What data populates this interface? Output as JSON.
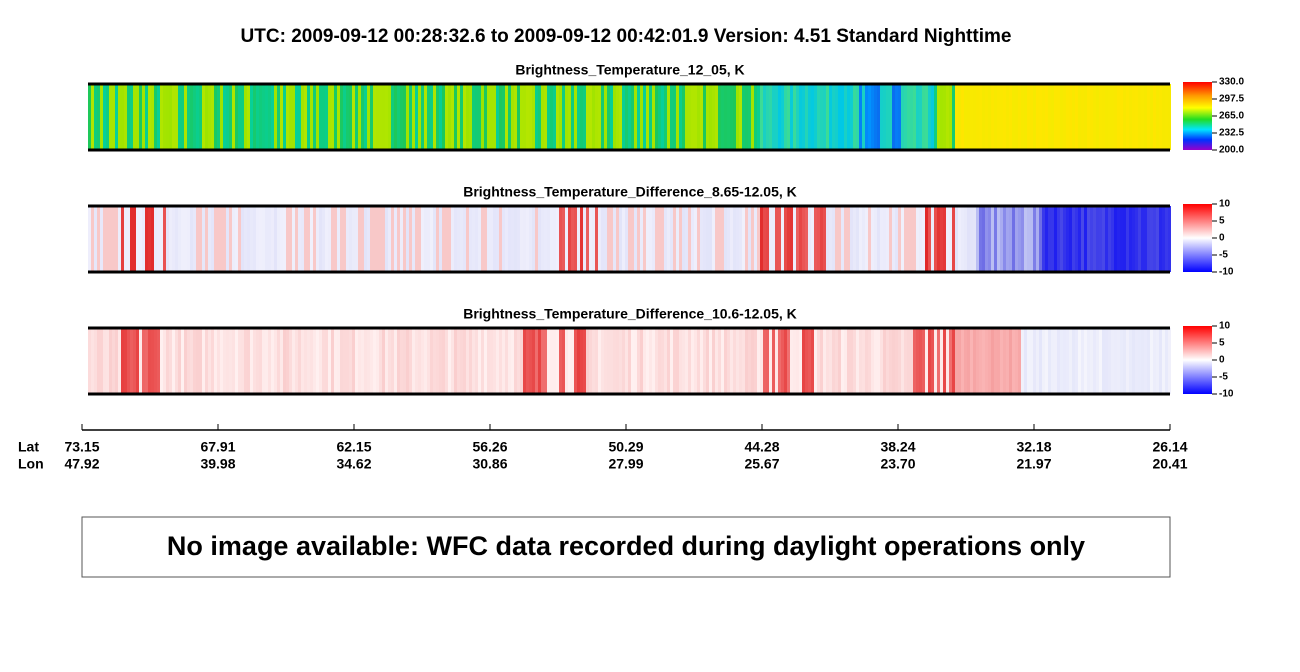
{
  "title": "UTC:  2009-09-12   00:28:32.6  to  2009-09-12   00:42:01.9    Version: 4.51  Standard Nighttime",
  "panels": [
    {
      "title": "Brightness_Temperature_12_05, K",
      "colorbar_ticks": [
        {
          "value": 330,
          "label": "330.0"
        },
        {
          "value": 297.5,
          "label": "297.5"
        },
        {
          "value": 265,
          "label": "265.0"
        },
        {
          "value": 232.5,
          "label": "232.5"
        },
        {
          "value": 200,
          "label": "200.0"
        }
      ]
    },
    {
      "title": "Brightness_Temperature_Difference_8.65-12.05, K",
      "colorbar_ticks": [
        10,
        5,
        0,
        -5,
        -10
      ]
    },
    {
      "title": "Brightness_Temperature_Difference_10.6-12.05, K",
      "colorbar_ticks": [
        10,
        5,
        0,
        -5,
        -10
      ]
    }
  ],
  "axis": {
    "row_labels": [
      "Lat",
      "Lon"
    ],
    "lat": [
      73.15,
      67.91,
      62.15,
      56.26,
      50.29,
      44.28,
      38.24,
      32.18,
      26.14
    ],
    "lon": [
      47.92,
      39.98,
      34.62,
      30.86,
      27.99,
      25.67,
      {
        "value": 23.7,
        "label": "23.70"
      },
      21.97,
      20.41
    ]
  },
  "message": "No image available: WFC data recorded during daylight operations only"
}
